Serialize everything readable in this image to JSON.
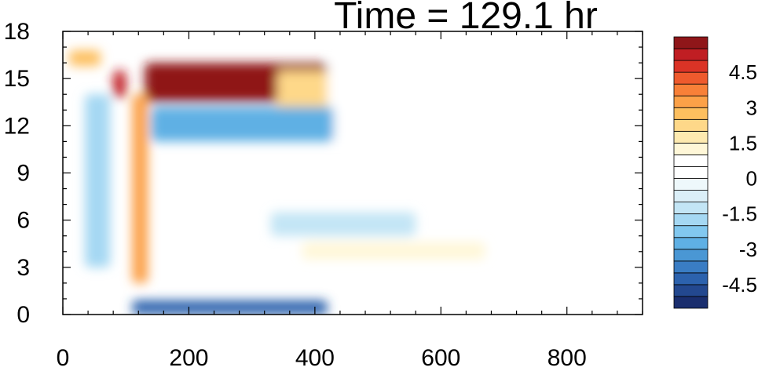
{
  "chart_data": {
    "type": "heatmap",
    "title": "Time = 129.1 hr",
    "xlabel": "",
    "ylabel": "",
    "xlim": [
      0,
      920
    ],
    "ylim": [
      0,
      18
    ],
    "x_ticks": [
      0,
      200,
      400,
      600,
      800
    ],
    "y_ticks": [
      0,
      3,
      6,
      9,
      12,
      15,
      18
    ],
    "colorbar": {
      "levels": [
        -5.5,
        -5,
        -4.5,
        -4,
        -3.5,
        -3,
        -2.5,
        -2,
        -1.5,
        -1,
        -0.5,
        0,
        0.5,
        1,
        1.5,
        2,
        2.5,
        3,
        3.5,
        4,
        4.5,
        5,
        5.5
      ],
      "labels": [
        -4.5,
        -3,
        -1.5,
        0,
        1.5,
        3,
        4.5
      ],
      "colors": [
        "#1a2e6e",
        "#23488f",
        "#2c62ad",
        "#3a7dc4",
        "#4a97d4",
        "#5fb0e4",
        "#82c8ef",
        "#a5d8f3",
        "#c3e5f5",
        "#dbeff8",
        "#eef8fb",
        "#ffffff",
        "#ffffff",
        "#fff7d8",
        "#feeab0",
        "#fed889",
        "#fdbf5f",
        "#fca148",
        "#f88038",
        "#ee5a2d",
        "#db3326",
        "#c01e23",
        "#8f1619"
      ],
      "legend_position": "right"
    },
    "features": [
      {
        "x": [
          130,
          420
        ],
        "y": [
          13.5,
          16.0
        ],
        "value": 5.5
      },
      {
        "x": [
          340,
          530
        ],
        "y": [
          12.0,
          15.5
        ],
        "value": 2.0
      },
      {
        "x": [
          420,
          900
        ],
        "y": [
          11.0,
          16.0
        ],
        "value": 0.8
      },
      {
        "x": [
          140,
          430
        ],
        "y": [
          11.0,
          13.2
        ],
        "value": -2.8
      },
      {
        "x": [
          110,
          420
        ],
        "y": [
          0.0,
          0.9
        ],
        "value": -4.5
      },
      {
        "x": [
          330,
          560
        ],
        "y": [
          5.0,
          6.5
        ],
        "value": -1.2
      },
      {
        "x": [
          380,
          670
        ],
        "y": [
          3.5,
          4.6
        ],
        "value": 1.0
      },
      {
        "x": [
          80,
          100
        ],
        "y": [
          13.8,
          15.5
        ],
        "value": 5.0
      },
      {
        "x": [
          10,
          60
        ],
        "y": [
          15.8,
          16.8
        ],
        "value": 2.5
      },
      {
        "x": [
          110,
          135
        ],
        "y": [
          2.0,
          14.0
        ],
        "value": 3.0
      },
      {
        "x": [
          35,
          75
        ],
        "y": [
          3.0,
          14.0
        ],
        "value": -2.0
      }
    ]
  }
}
